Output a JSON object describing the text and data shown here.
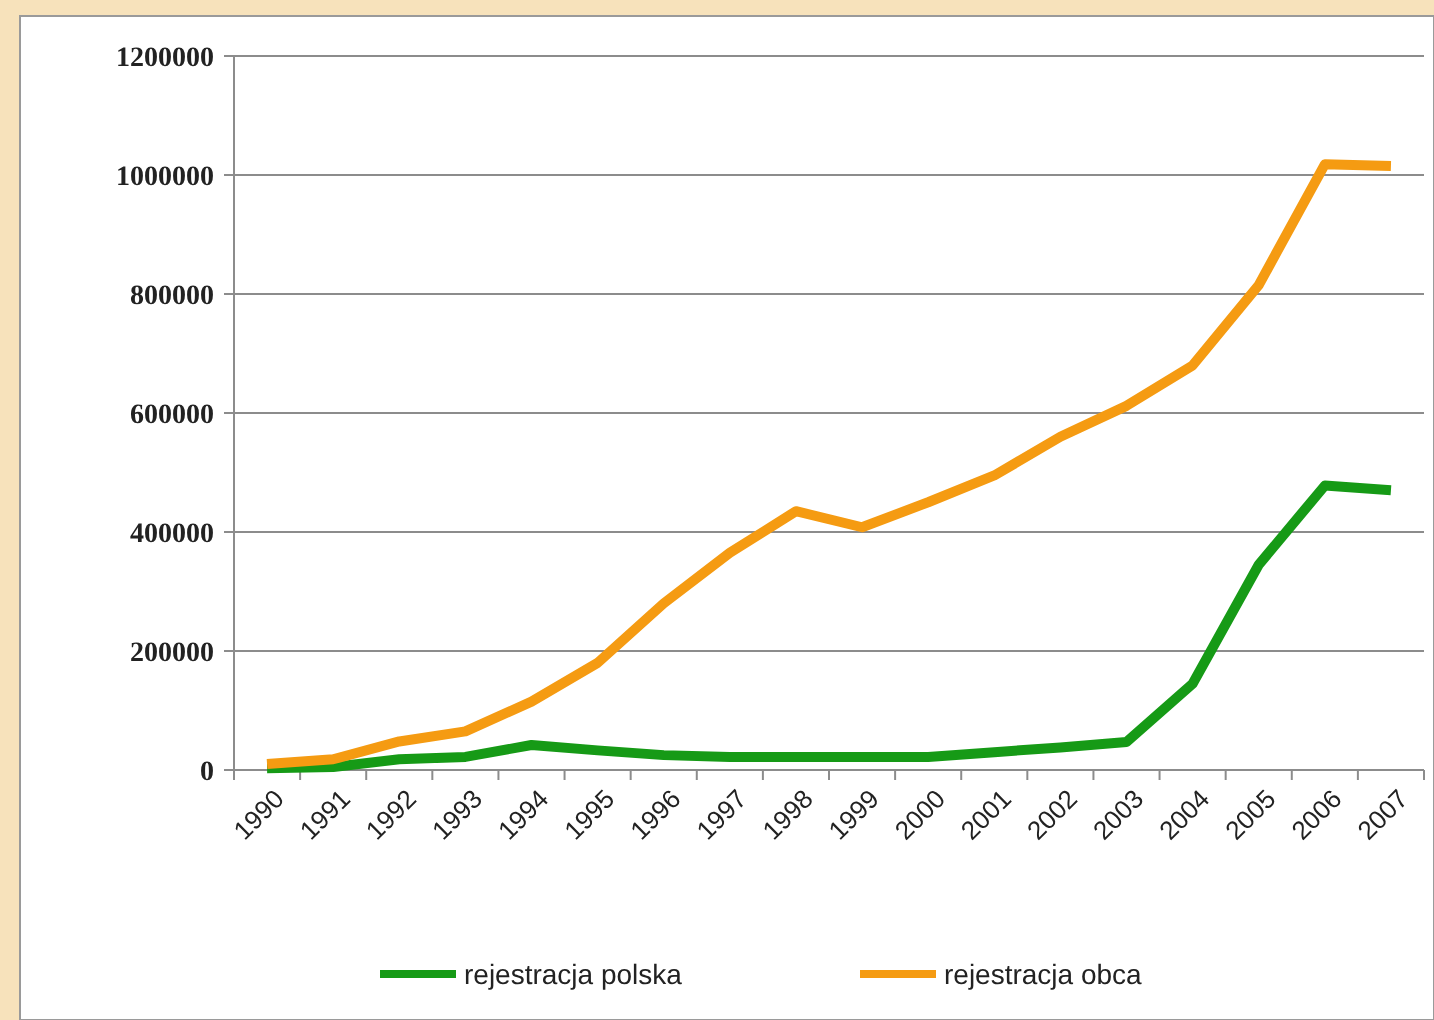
{
  "chart_data": {
    "type": "line",
    "categories": [
      "1990",
      "1991",
      "1992",
      "1993",
      "1994",
      "1995",
      "1996",
      "1997",
      "1998",
      "1999",
      "2000",
      "2001",
      "2002",
      "2003",
      "2004",
      "2005",
      "2006",
      "2007"
    ],
    "series": [
      {
        "name": "rejestracja polska",
        "color": "#169a16",
        "values": [
          3000,
          5000,
          18000,
          22000,
          42000,
          33000,
          25000,
          22000,
          22000,
          22000,
          22000,
          30000,
          38000,
          47000,
          145000,
          345000,
          478000,
          470000
        ]
      },
      {
        "name": "rejestracja obca",
        "color": "#f59b12",
        "values": [
          10000,
          18000,
          48000,
          65000,
          115000,
          180000,
          280000,
          365000,
          435000,
          408000,
          450000,
          495000,
          560000,
          612000,
          680000,
          815000,
          1018000,
          1015000
        ]
      }
    ],
    "ylim": [
      0,
      1200000
    ],
    "yticks": [
      0,
      200000,
      400000,
      600000,
      800000,
      1000000,
      1200000
    ],
    "grid": "y",
    "legend": "bottom",
    "marker": "none",
    "line_style": "solid"
  }
}
